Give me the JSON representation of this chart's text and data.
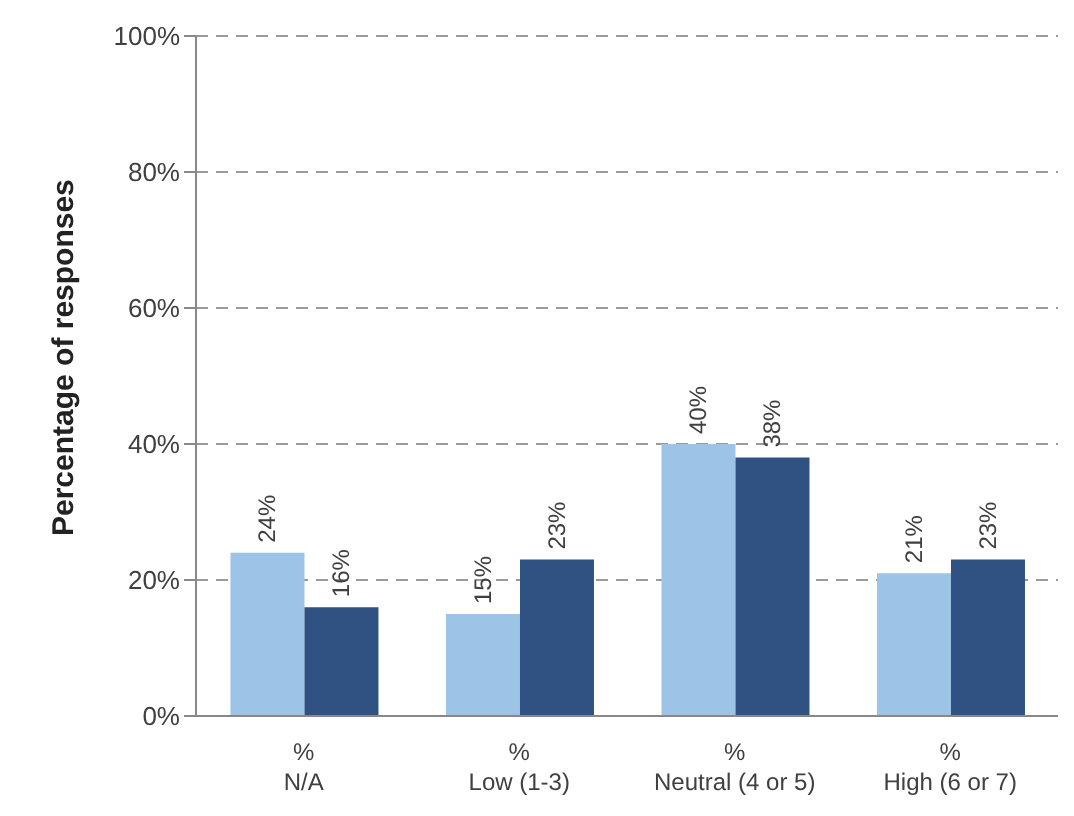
{
  "chart_data": {
    "type": "bar",
    "ylabel": "Percentage of responses",
    "categories": [
      "%\nN/A",
      "%\nLow (1-3)",
      "%\nNeutral (4 or 5)",
      "%\nHigh (6 or 7)"
    ],
    "series": [
      {
        "color": "#9dc3e6",
        "values": [
          24,
          15,
          40,
          21
        ],
        "value_labels": [
          "24%",
          "15%",
          "40%",
          "21%"
        ]
      },
      {
        "color": "#2f5283",
        "values": [
          16,
          23,
          38,
          23
        ],
        "value_labels": [
          "16%",
          "23%",
          "38%",
          "23%"
        ]
      }
    ],
    "ylim": [
      0,
      100
    ],
    "yticks": [
      {
        "value": 0,
        "label": "0%"
      },
      {
        "value": 20,
        "label": "20%"
      },
      {
        "value": 40,
        "label": "40%"
      },
      {
        "value": 60,
        "label": "60%"
      },
      {
        "value": 80,
        "label": "80%"
      },
      {
        "value": 100,
        "label": "100%"
      }
    ],
    "grid": "y",
    "legend": false
  }
}
